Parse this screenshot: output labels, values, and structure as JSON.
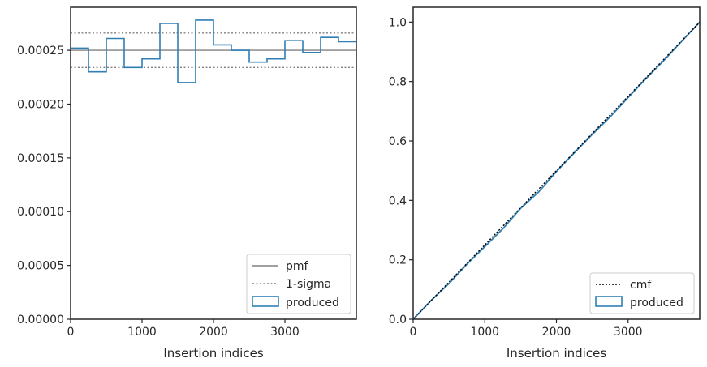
{
  "colors": {
    "produced": "#2f7fb5",
    "pmf": "#808080",
    "sigma": "#808080",
    "cmf": "#000000",
    "axes": "#262626"
  },
  "chart_data": [
    {
      "type": "histogram-step",
      "xlabel": "Insertion indices",
      "ylabel": "",
      "xlim": [
        0,
        4000
      ],
      "ylim": [
        0,
        0.00029
      ],
      "xticks": [
        0,
        1000,
        2000,
        3000
      ],
      "xtick_labels": [
        "0",
        "1000",
        "2000",
        "3000"
      ],
      "yticks": [
        0,
        5e-05,
        0.0001,
        0.00015,
        0.0002,
        0.00025
      ],
      "ytick_labels": [
        "0.00000",
        "0.00005",
        "0.00010",
        "0.00015",
        "0.00020",
        "0.00025"
      ],
      "grid": false,
      "legend_position": "lower right",
      "legend": [
        "pmf",
        "1-sigma",
        "produced"
      ],
      "pmf": 0.00025,
      "sigma": [
        0.000234,
        0.000266
      ],
      "bin_edges": [
        0,
        250,
        500,
        750,
        1000,
        1250,
        1500,
        1750,
        2000,
        2250,
        2500,
        2750,
        3000,
        3250,
        3500,
        3750,
        4000
      ],
      "values": [
        0.000252,
        0.00023,
        0.000261,
        0.000234,
        0.000242,
        0.000275,
        0.00022,
        0.000278,
        0.000255,
        0.00025,
        0.000239,
        0.000242,
        0.000259,
        0.000248,
        0.000262,
        0.000258
      ]
    },
    {
      "type": "line",
      "xlabel": "Insertion indices",
      "ylabel": "",
      "xlim": [
        0,
        4000
      ],
      "ylim": [
        0,
        1.05
      ],
      "xticks": [
        0,
        1000,
        2000,
        3000
      ],
      "xtick_labels": [
        "0",
        "1000",
        "2000",
        "3000"
      ],
      "yticks": [
        0,
        0.2,
        0.4,
        0.6,
        0.8,
        1.0
      ],
      "ytick_labels": [
        "0.0",
        "0.2",
        "0.4",
        "0.6",
        "0.8",
        "1.0"
      ],
      "grid": false,
      "legend_position": "lower right",
      "legend": [
        "cmf",
        "produced"
      ],
      "cmf": {
        "x": [
          0,
          4000
        ],
        "y": [
          0,
          1.0
        ]
      },
      "produced": {
        "x": [
          0,
          250,
          500,
          750,
          1000,
          1250,
          1500,
          1750,
          2000,
          2250,
          2500,
          2750,
          3000,
          3250,
          3500,
          3750,
          4000
        ],
        "y": [
          0,
          0.063,
          0.12,
          0.185,
          0.244,
          0.304,
          0.373,
          0.428,
          0.497,
          0.56,
          0.622,
          0.681,
          0.746,
          0.81,
          0.871,
          0.936,
          1.0
        ]
      }
    }
  ]
}
